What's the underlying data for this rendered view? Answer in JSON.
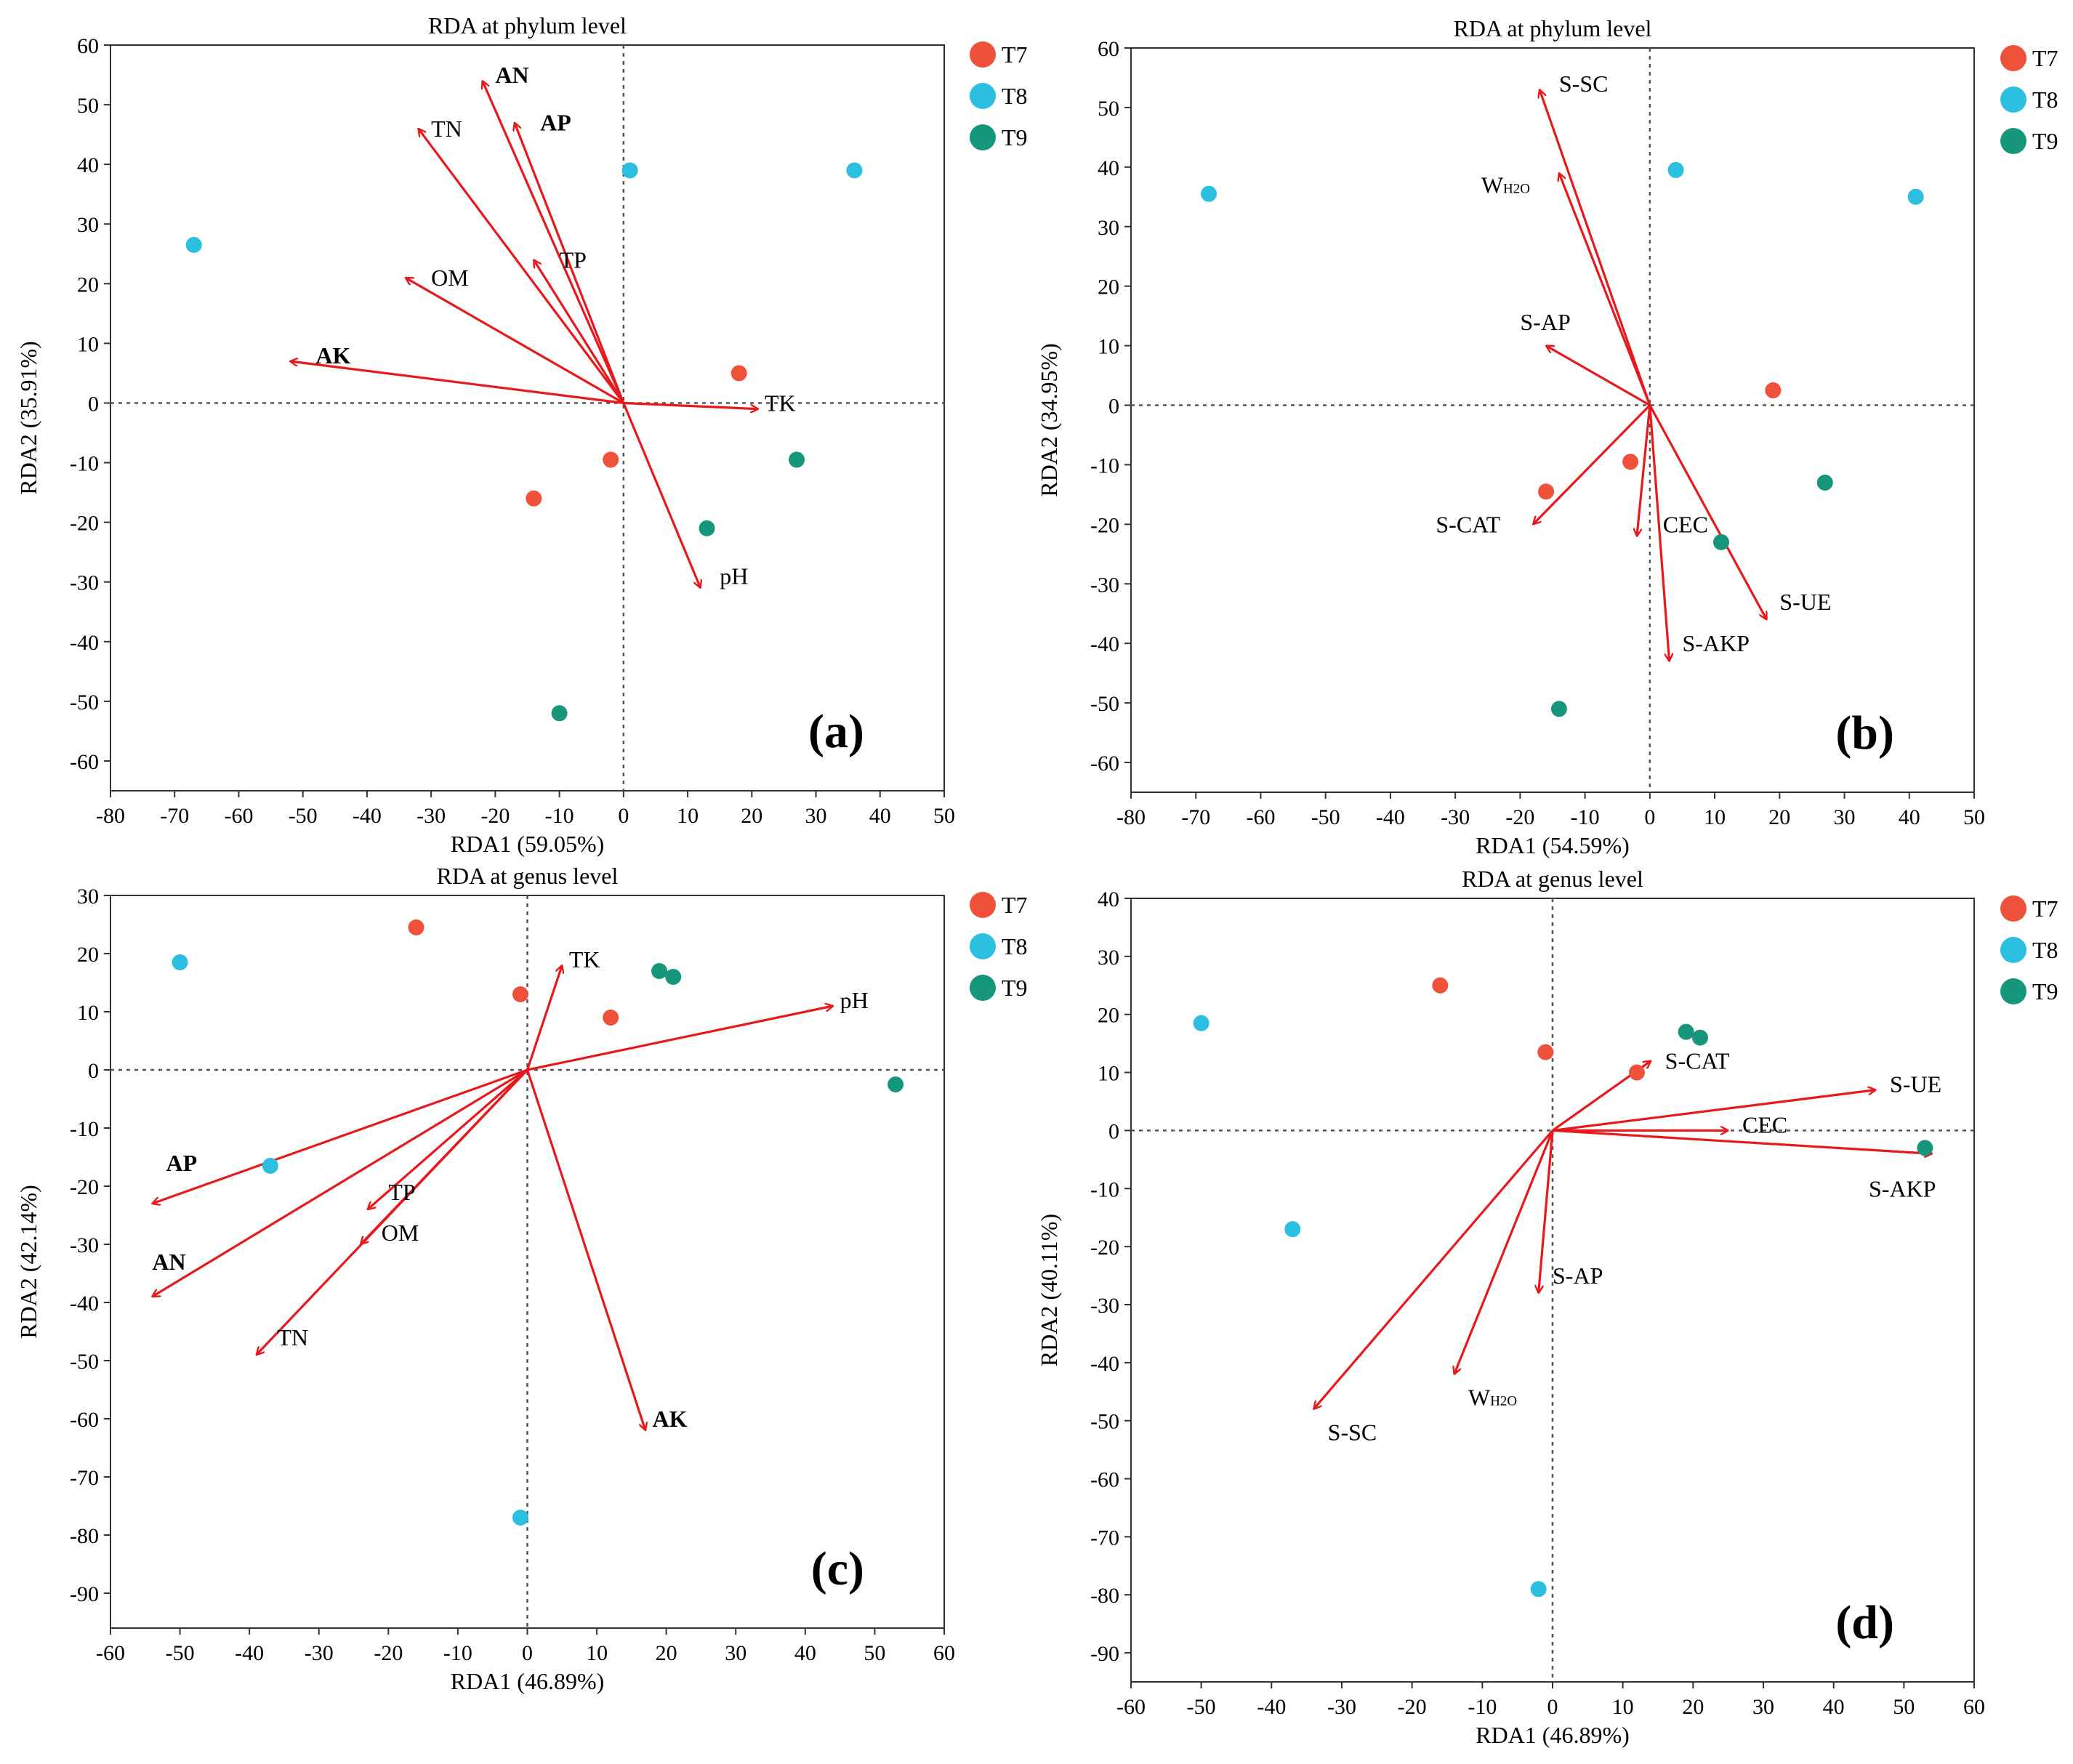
{
  "colors": {
    "T7": "#f0513b",
    "T8": "#2bbfe0",
    "T9": "#16967a",
    "arrow": "#e8191c",
    "axis": "#333333"
  },
  "chart_data": [
    {
      "type": "scatter",
      "panel": "(a)",
      "title": "RDA at phylum level",
      "xlabel": "RDA1 (59.05%)",
      "ylabel": "RDA2 (35.91%)",
      "xlim": [
        -80,
        50
      ],
      "ylim": [
        -65,
        60
      ],
      "xticks": [
        -80,
        -70,
        -60,
        -50,
        -40,
        -30,
        -20,
        -10,
        0,
        10,
        20,
        30,
        40,
        50
      ],
      "yticks": [
        -60,
        -50,
        -40,
        -30,
        -20,
        -10,
        0,
        10,
        20,
        30,
        40,
        50,
        60
      ],
      "legend": [
        "T7",
        "T8",
        "T9"
      ],
      "series": [
        {
          "name": "T7",
          "points": [
            [
              18,
              5
            ],
            [
              -2,
              -9.5
            ],
            [
              -14,
              -16
            ]
          ]
        },
        {
          "name": "T8",
          "points": [
            [
              1,
              39
            ],
            [
              36,
              39
            ],
            [
              -67,
              26.5
            ]
          ]
        },
        {
          "name": "T9",
          "points": [
            [
              27,
              -9.5
            ],
            [
              13,
              -21
            ],
            [
              -10,
              -52
            ]
          ]
        }
      ],
      "vectors": [
        {
          "label": "AN",
          "x": -22,
          "y": 54,
          "lx": -20,
          "ly": 55,
          "bold": true
        },
        {
          "label": "TN",
          "x": -32,
          "y": 46,
          "lx": -30,
          "ly": 46
        },
        {
          "label": "AP",
          "x": -17,
          "y": 47,
          "lx": -13,
          "ly": 47,
          "bold": true
        },
        {
          "label": "OM",
          "x": -34,
          "y": 21,
          "lx": -30,
          "ly": 21
        },
        {
          "label": "TP",
          "x": -14,
          "y": 24,
          "lx": -10,
          "ly": 24
        },
        {
          "label": "AK",
          "x": -52,
          "y": 7,
          "lx": -48,
          "ly": 8,
          "bold": true
        },
        {
          "label": "TK",
          "x": 21,
          "y": -1,
          "lx": 22,
          "ly": 0
        },
        {
          "label": "pH",
          "x": 12,
          "y": -31,
          "lx": 15,
          "ly": -29
        }
      ]
    },
    {
      "type": "scatter",
      "panel": "(b)",
      "title": "RDA at phylum level",
      "xlabel": "RDA1 (54.59%)",
      "ylabel": "RDA2 (34.95%)",
      "xlim": [
        -80,
        50
      ],
      "ylim": [
        -65,
        60
      ],
      "xticks": [
        -80,
        -70,
        -60,
        -50,
        -40,
        -30,
        -20,
        -10,
        0,
        10,
        20,
        30,
        40,
        50
      ],
      "yticks": [
        -60,
        -50,
        -40,
        -30,
        -20,
        -10,
        0,
        10,
        20,
        30,
        40,
        50,
        60
      ],
      "legend": [
        "T7",
        "T8",
        "T9"
      ],
      "series": [
        {
          "name": "T7",
          "points": [
            [
              19,
              2.5
            ],
            [
              -3,
              -9.5
            ],
            [
              -16,
              -14.5
            ]
          ]
        },
        {
          "name": "T8",
          "points": [
            [
              4,
              39.5
            ],
            [
              41,
              35
            ],
            [
              -68,
              35.5
            ]
          ]
        },
        {
          "name": "T9",
          "points": [
            [
              27,
              -13
            ],
            [
              11,
              -23
            ],
            [
              -14,
              -51
            ]
          ]
        }
      ],
      "vectors": [
        {
          "label": "S-SC",
          "x": -17,
          "y": 53,
          "lx": -14,
          "ly": 54
        },
        {
          "label": "W",
          "sub": "H2O",
          "x": -14,
          "y": 39,
          "lx": -26,
          "ly": 37
        },
        {
          "label": "S-AP",
          "x": -16,
          "y": 10,
          "lx": -20,
          "ly": 14
        },
        {
          "label": "S-CAT",
          "x": -18,
          "y": -20,
          "lx": -33,
          "ly": -20
        },
        {
          "label": "CEC",
          "x": -2,
          "y": -22,
          "lx": 2,
          "ly": -20
        },
        {
          "label": "S-UE",
          "x": 18,
          "y": -36,
          "lx": 20,
          "ly": -33
        },
        {
          "label": "S-AKP",
          "x": 3,
          "y": -43,
          "lx": 5,
          "ly": -40
        }
      ]
    },
    {
      "type": "scatter",
      "panel": "(c)",
      "title": "RDA at genus level",
      "xlabel": "RDA1 (46.89%)",
      "ylabel": "RDA2 (42.14%)",
      "xlim": [
        -60,
        60
      ],
      "ylim": [
        -96,
        30
      ],
      "xticks": [
        -60,
        -50,
        -40,
        -30,
        -20,
        -10,
        0,
        10,
        20,
        30,
        40,
        50,
        60
      ],
      "yticks": [
        -90,
        -80,
        -70,
        -60,
        -50,
        -40,
        -30,
        -20,
        -10,
        0,
        10,
        20,
        30
      ],
      "legend": [
        "T7",
        "T8",
        "T9"
      ],
      "series": [
        {
          "name": "T7",
          "points": [
            [
              -16,
              24.5
            ],
            [
              -1,
              13
            ],
            [
              12,
              9
            ]
          ]
        },
        {
          "name": "T8",
          "points": [
            [
              -50,
              18.5
            ],
            [
              -37,
              -16.5
            ],
            [
              -1,
              -77
            ]
          ]
        },
        {
          "name": "T9",
          "points": [
            [
              19,
              17
            ],
            [
              21,
              16
            ],
            [
              53,
              -2.5
            ]
          ]
        }
      ],
      "vectors": [
        {
          "label": "TK",
          "x": 5,
          "y": 18,
          "lx": 6,
          "ly": 19
        },
        {
          "label": "pH",
          "x": 44,
          "y": 11,
          "lx": 45,
          "ly": 12
        },
        {
          "label": "AP",
          "x": -54,
          "y": -23,
          "lx": -52,
          "ly": -16,
          "bold": true
        },
        {
          "label": "TP",
          "x": -23,
          "y": -24,
          "lx": -20,
          "ly": -21
        },
        {
          "label": "OM",
          "x": -24,
          "y": -30,
          "lx": -21,
          "ly": -28
        },
        {
          "label": "AN",
          "x": -54,
          "y": -39,
          "lx": -54,
          "ly": -33,
          "bold": true
        },
        {
          "label": "TN",
          "x": -39,
          "y": -49,
          "lx": -36,
          "ly": -46
        },
        {
          "label": "AK",
          "x": 17,
          "y": -62,
          "lx": 18,
          "ly": -60,
          "bold": true
        }
      ]
    },
    {
      "type": "scatter",
      "panel": "(d)",
      "title": "RDA at genus level",
      "xlabel": "RDA1 (46.89%)",
      "ylabel": "RDA2 (40.11%)",
      "xlim": [
        -60,
        60
      ],
      "ylim": [
        -95,
        40
      ],
      "xticks": [
        -60,
        -50,
        -40,
        -30,
        -20,
        -10,
        0,
        10,
        20,
        30,
        40,
        50,
        60
      ],
      "yticks": [
        -90,
        -80,
        -70,
        -60,
        -50,
        -40,
        -30,
        -20,
        -10,
        0,
        10,
        20,
        30,
        40
      ],
      "legend": [
        "T7",
        "T8",
        "T9"
      ],
      "series": [
        {
          "name": "T7",
          "points": [
            [
              -16,
              25
            ],
            [
              -1,
              13.5
            ],
            [
              12,
              10
            ]
          ]
        },
        {
          "name": "T8",
          "points": [
            [
              -50,
              18.5
            ],
            [
              -37,
              -17
            ],
            [
              -2,
              -79
            ]
          ]
        },
        {
          "name": "T9",
          "points": [
            [
              19,
              17
            ],
            [
              21,
              16
            ],
            [
              53,
              -3
            ]
          ]
        }
      ],
      "vectors": [
        {
          "label": "S-CAT",
          "x": 14,
          "y": 12,
          "lx": 16,
          "ly": 12
        },
        {
          "label": "S-UE",
          "x": 46,
          "y": 7,
          "lx": 48,
          "ly": 8
        },
        {
          "label": "CEC",
          "x": 25,
          "y": 0,
          "lx": 27,
          "ly": 1
        },
        {
          "label": "S-AKP",
          "x": 54,
          "y": -4,
          "lx": 45,
          "ly": -10
        },
        {
          "label": "S-AP",
          "x": -2,
          "y": -28,
          "lx": 0,
          "ly": -25
        },
        {
          "label": "W",
          "sub": "H2O",
          "x": -14,
          "y": -42,
          "lx": -12,
          "ly": -46
        },
        {
          "label": "S-SC",
          "x": -34,
          "y": -48,
          "lx": -32,
          "ly": -52
        }
      ]
    }
  ]
}
